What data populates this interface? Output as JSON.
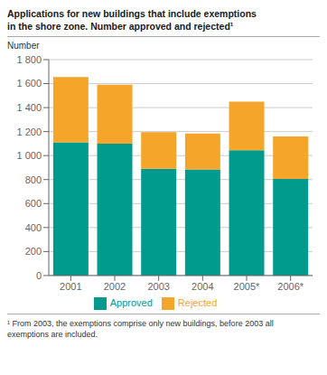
{
  "chart_data": {
    "type": "bar",
    "title": "Applications for new buildings that include exemptions\nin the shore zone. Number approved and rejected¹",
    "ylabel": "Number",
    "categories": [
      "2001",
      "2002",
      "2003",
      "2004",
      "2005*",
      "2006*"
    ],
    "series": [
      {
        "name": "Approved",
        "color": "#009B8D",
        "values": [
          1110,
          1100,
          890,
          885,
          1045,
          805
        ]
      },
      {
        "name": "Rejected",
        "color": "#F5A52A",
        "values": [
          545,
          490,
          305,
          300,
          405,
          355
        ]
      }
    ],
    "stacked": true,
    "ylim": [
      0,
      1800
    ],
    "yticks": [
      0,
      200,
      400,
      600,
      800,
      {
        "value": 1000,
        "label": "1 000"
      },
      {
        "value": 1200,
        "label": "1 200"
      },
      {
        "value": 1400,
        "label": "1 400"
      },
      {
        "value": 1600,
        "label": "1 600"
      },
      {
        "value": 1800,
        "label": "1 800"
      }
    ],
    "grid": true,
    "legend": "bottom",
    "annotations": [
      "¹ From 2003, the exemptions comprise only new buildings, before 2003 all\nexemptions are included."
    ]
  }
}
